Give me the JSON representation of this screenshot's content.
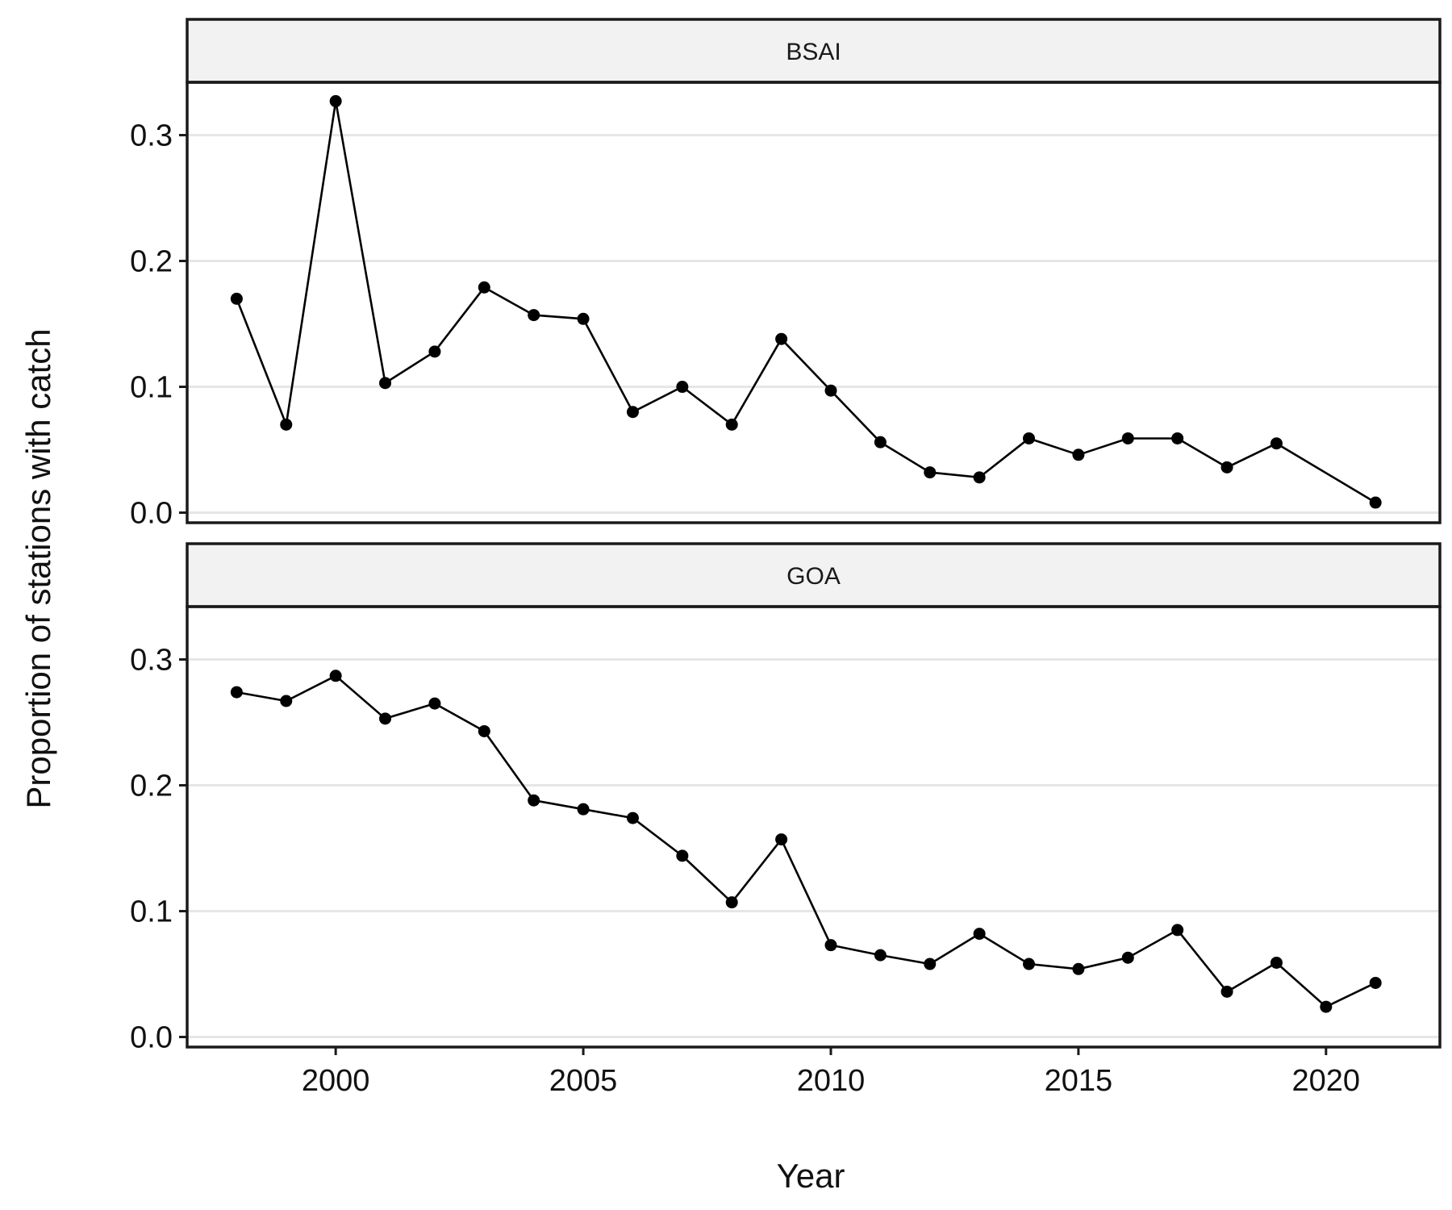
{
  "chart_data": {
    "type": "line",
    "xlabel": "Year",
    "ylabel": "Proportion of stations with catch",
    "xlim": [
      1997,
      2022.3
    ],
    "ylim": [
      -0.008,
      0.342
    ],
    "x_ticks": [
      2000,
      2005,
      2010,
      2015,
      2020
    ],
    "y_ticks": [
      0.0,
      0.1,
      0.2,
      0.3
    ],
    "y_tick_labels": [
      "0.0",
      "0.1",
      "0.2",
      "0.3"
    ],
    "grid": true,
    "panels": [
      {
        "label": "BSAI",
        "x": [
          1998,
          1999,
          2000,
          2001,
          2002,
          2003,
          2004,
          2005,
          2006,
          2007,
          2008,
          2009,
          2010,
          2011,
          2012,
          2013,
          2014,
          2015,
          2016,
          2017,
          2018,
          2019,
          2021
        ],
        "values": [
          0.17,
          0.07,
          0.327,
          0.103,
          0.128,
          0.179,
          0.157,
          0.154,
          0.08,
          0.1,
          0.07,
          0.138,
          0.097,
          0.056,
          0.032,
          0.028,
          0.059,
          0.046,
          0.059,
          0.059,
          0.036,
          0.055,
          0.008
        ]
      },
      {
        "label": "GOA",
        "x": [
          1998,
          1999,
          2000,
          2001,
          2002,
          2003,
          2004,
          2005,
          2006,
          2007,
          2008,
          2009,
          2010,
          2011,
          2012,
          2013,
          2014,
          2015,
          2016,
          2017,
          2018,
          2019,
          2020,
          2021
        ],
        "values": [
          0.274,
          0.267,
          0.287,
          0.253,
          0.265,
          0.243,
          0.188,
          0.181,
          0.174,
          0.144,
          0.107,
          0.157,
          0.073,
          0.065,
          0.058,
          0.082,
          0.058,
          0.054,
          0.063,
          0.085,
          0.036,
          0.059,
          0.024,
          0.043
        ]
      }
    ]
  }
}
